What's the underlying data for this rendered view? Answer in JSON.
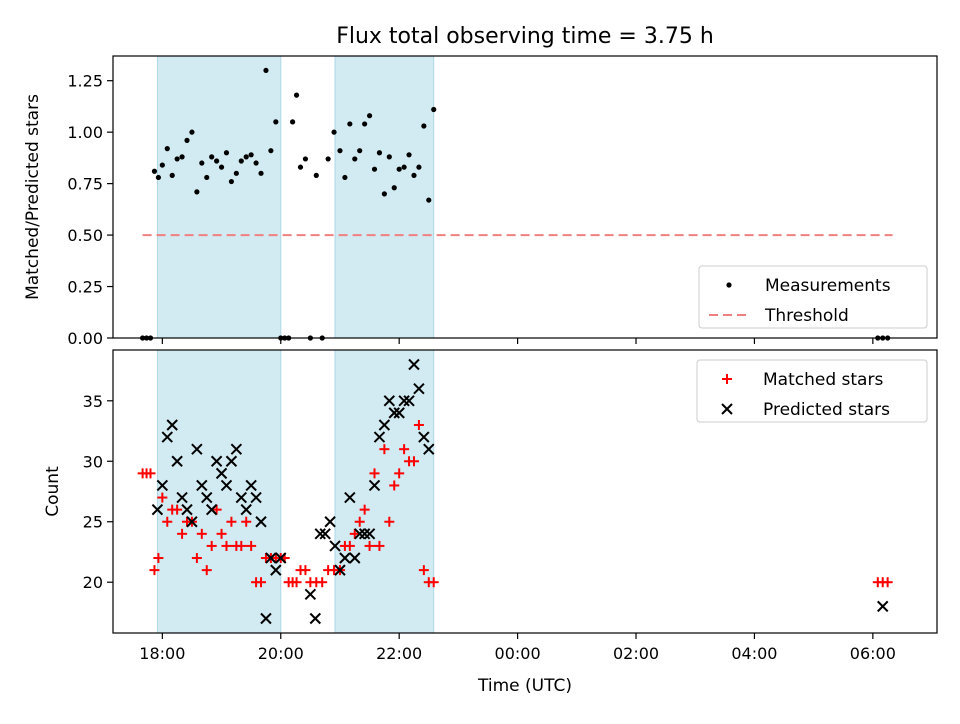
{
  "figure": {
    "title": "Flux total observing time = 3.75 h",
    "xlabel": "Time (UTC)"
  },
  "colors": {
    "measurement": "#000000",
    "threshold": "#f08080",
    "matched": "#ff0000",
    "predicted": "#000000",
    "shade": "#add8e6"
  },
  "chart_data": [
    {
      "type": "scatter",
      "panel": "top",
      "ylabel": "Matched/Predicted stars",
      "ylim": [
        0.0,
        1.37
      ],
      "yticks": [
        0.0,
        0.25,
        0.5,
        0.75,
        1.0,
        1.25
      ],
      "ytick_labels": [
        "0.00",
        "0.25",
        "0.50",
        "0.75",
        "1.00",
        "1.25"
      ],
      "xlim": [
        "17:10",
        "31:05"
      ],
      "xticks": [
        "18:00",
        "20:00",
        "22:00",
        "24:00",
        "26:00",
        "28:00",
        "30:00"
      ],
      "shaded_intervals": [
        [
          "17:55",
          "20:00"
        ],
        [
          "20:55",
          "22:35"
        ]
      ],
      "legend": {
        "placement": "lower right",
        "entries": [
          "Measurements",
          "Threshold"
        ]
      },
      "threshold": {
        "name": "Threshold",
        "y": 0.5,
        "x_range": [
          "17:40",
          "30:20"
        ]
      },
      "series": [
        {
          "name": "Measurements",
          "marker": "dot",
          "x": [
            "17:40",
            "17:44",
            "17:48",
            "17:52",
            "17:56",
            "18:00",
            "18:05",
            "18:10",
            "18:15",
            "18:20",
            "18:25",
            "18:30",
            "18:35",
            "18:40",
            "18:45",
            "18:50",
            "18:55",
            "19:00",
            "19:05",
            "19:10",
            "19:15",
            "19:20",
            "19:25",
            "19:30",
            "19:35",
            "19:40",
            "19:45",
            "19:50",
            "19:55",
            "20:00",
            "20:04",
            "20:08",
            "20:12",
            "20:16",
            "20:20",
            "20:25",
            "20:30",
            "20:36",
            "20:42",
            "20:48",
            "20:54",
            "21:00",
            "21:05",
            "21:10",
            "21:15",
            "21:20",
            "21:25",
            "21:30",
            "21:35",
            "21:40",
            "21:45",
            "21:50",
            "21:55",
            "22:00",
            "22:05",
            "22:10",
            "22:15",
            "22:20",
            "22:25",
            "22:30",
            "22:35",
            "30:05",
            "30:10",
            "30:15"
          ],
          "y": [
            0.0,
            0.0,
            0.0,
            0.81,
            0.78,
            0.84,
            0.92,
            0.79,
            0.87,
            0.88,
            0.96,
            1.0,
            0.71,
            0.85,
            0.78,
            0.88,
            0.86,
            0.83,
            0.9,
            0.76,
            0.8,
            0.86,
            0.88,
            0.89,
            0.85,
            0.8,
            1.3,
            0.91,
            1.05,
            0.0,
            0.0,
            0.0,
            1.05,
            1.18,
            0.83,
            0.87,
            0.0,
            0.79,
            0.0,
            0.87,
            1.0,
            0.91,
            0.78,
            1.04,
            0.87,
            0.91,
            1.04,
            1.08,
            0.82,
            0.9,
            0.7,
            0.88,
            0.73,
            0.82,
            0.83,
            0.89,
            0.79,
            0.83,
            1.03,
            0.67,
            1.11,
            0.0,
            0.0,
            0.0
          ]
        }
      ]
    },
    {
      "type": "scatter",
      "panel": "bottom",
      "ylabel": "Count",
      "ylim": [
        15.8,
        39.2
      ],
      "yticks": [
        20,
        25,
        30,
        35
      ],
      "ytick_labels": [
        "20",
        "25",
        "30",
        "35"
      ],
      "xlim": [
        "17:10",
        "31:05"
      ],
      "xticks": [
        "18:00",
        "20:00",
        "22:00",
        "24:00",
        "26:00",
        "28:00",
        "30:00"
      ],
      "xtick_labels": [
        "18:00",
        "20:00",
        "22:00",
        "00:00",
        "02:00",
        "04:00",
        "06:00"
      ],
      "shaded_intervals": [
        [
          "17:55",
          "20:00"
        ],
        [
          "20:55",
          "22:35"
        ]
      ],
      "legend": {
        "placement": "upper right",
        "entries": [
          "Matched stars",
          "Predicted stars"
        ]
      },
      "series": [
        {
          "name": "Matched stars",
          "marker": "plus",
          "x": [
            "17:40",
            "17:44",
            "17:48",
            "17:52",
            "17:56",
            "18:00",
            "18:05",
            "18:10",
            "18:15",
            "18:20",
            "18:25",
            "18:30",
            "18:35",
            "18:40",
            "18:45",
            "18:50",
            "18:55",
            "19:00",
            "19:05",
            "19:10",
            "19:15",
            "19:20",
            "19:25",
            "19:30",
            "19:35",
            "19:40",
            "19:45",
            "19:50",
            "19:55",
            "20:00",
            "20:04",
            "20:08",
            "20:12",
            "20:16",
            "20:20",
            "20:25",
            "20:30",
            "20:36",
            "20:42",
            "20:48",
            "20:54",
            "21:00",
            "21:05",
            "21:10",
            "21:15",
            "21:20",
            "21:25",
            "21:30",
            "21:35",
            "21:40",
            "21:45",
            "21:50",
            "21:55",
            "22:00",
            "22:05",
            "22:10",
            "22:15",
            "22:20",
            "22:25",
            "22:30",
            "22:35",
            "30:05",
            "30:10",
            "30:15"
          ],
          "y": [
            29,
            29,
            29,
            21,
            22,
            27,
            25,
            26,
            26,
            24,
            25,
            25,
            22,
            24,
            21,
            23,
            26,
            24,
            23,
            25,
            23,
            23,
            25,
            23,
            20,
            20,
            22,
            22,
            22,
            22,
            22,
            20,
            20,
            20,
            21,
            21,
            20,
            20,
            20,
            21,
            21,
            21,
            23,
            23,
            24,
            25,
            26,
            23,
            29,
            23,
            31,
            25,
            28,
            29,
            31,
            30,
            30,
            33,
            21,
            20,
            20,
            20,
            20,
            20
          ]
        },
        {
          "name": "Predicted stars",
          "marker": "x",
          "x": [
            "17:55",
            "18:00",
            "18:05",
            "18:10",
            "18:15",
            "18:20",
            "18:25",
            "18:30",
            "18:35",
            "18:40",
            "18:45",
            "18:50",
            "18:55",
            "19:00",
            "19:05",
            "19:10",
            "19:15",
            "19:20",
            "19:25",
            "19:30",
            "19:35",
            "19:40",
            "19:45",
            "19:50",
            "19:55",
            "20:00",
            "20:30",
            "20:35",
            "20:40",
            "20:45",
            "20:50",
            "20:55",
            "21:00",
            "21:05",
            "21:10",
            "21:15",
            "21:20",
            "21:25",
            "21:30",
            "21:35",
            "21:40",
            "21:45",
            "21:50",
            "21:55",
            "22:00",
            "22:05",
            "22:10",
            "22:15",
            "22:20",
            "22:25",
            "22:30",
            "30:10"
          ],
          "y": [
            26,
            28,
            32,
            33,
            30,
            27,
            26,
            25,
            31,
            28,
            27,
            26,
            30,
            29,
            28,
            30,
            31,
            27,
            26,
            28,
            27,
            25,
            17,
            22,
            21,
            22,
            19,
            17,
            24,
            24,
            25,
            23,
            21,
            22,
            27,
            22,
            24,
            24,
            24,
            28,
            32,
            33,
            35,
            34,
            34,
            35,
            35,
            38,
            36,
            32,
            31,
            18
          ]
        }
      ]
    }
  ]
}
